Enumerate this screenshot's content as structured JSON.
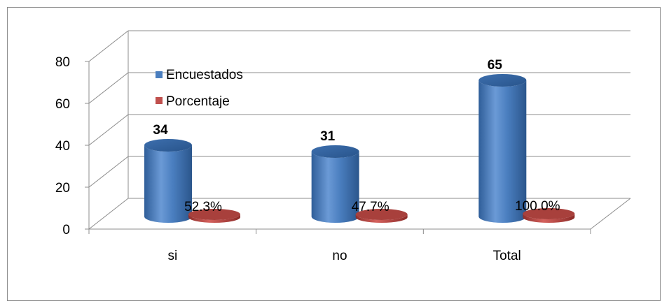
{
  "chart_data": {
    "type": "bar",
    "categories": [
      "si",
      "no",
      "Total"
    ],
    "series": [
      {
        "name": "Encuestados",
        "values": [
          34,
          31,
          65
        ],
        "labels": [
          "34",
          "31",
          "65"
        ],
        "color": "#4a7ebf"
      },
      {
        "name": "Porcentaje",
        "values": [
          0.523,
          0.477,
          1.0
        ],
        "labels": [
          "52.3%",
          "47.7%",
          "100.0%"
        ],
        "color": "#c0504d"
      }
    ],
    "ylim": [
      0,
      80
    ],
    "yticks": [
      "0",
      "20",
      "40",
      "60",
      "80"
    ],
    "grid": true,
    "legend": "top-left",
    "style": "3d-cylinder"
  }
}
